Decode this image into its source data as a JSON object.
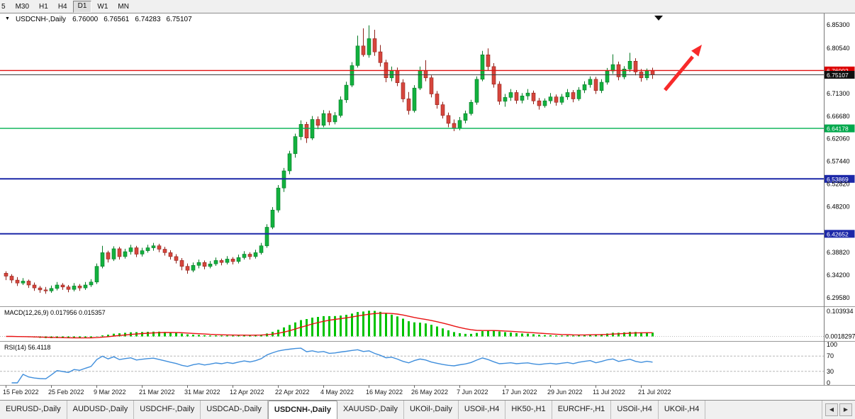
{
  "timeframe_toolbar": {
    "items": [
      "5",
      "M30",
      "H1",
      "H4",
      "D1",
      "W1",
      "MN"
    ],
    "active": "D1"
  },
  "chart_header": {
    "collapse_icon": "▼",
    "symbol_period": "USDCNH-,Daily",
    "open": "6.76000",
    "high": "6.76561",
    "low": "6.74283",
    "close": "6.75107"
  },
  "price_axis": {
    "labels": [
      "6.85300",
      "6.80540",
      "6.71300",
      "6.66680",
      "6.62060",
      "6.57440",
      "6.52820",
      "6.48200",
      "6.38820",
      "6.34200",
      "6.29580"
    ]
  },
  "hlines": [
    {
      "name": "resistance-line-red",
      "price": 6.76002,
      "label": "6.76002",
      "color": "#e21212",
      "width": 1.4,
      "badge_bg": "#dd0000"
    },
    {
      "name": "bid-price-line",
      "price": 6.75107,
      "label": "6.75107",
      "color": "#3c3c3c",
      "width": 1.0,
      "badge_bg": "#101010"
    },
    {
      "name": "support-line-green",
      "price": 6.64178,
      "label": "6.64178",
      "color": "#00b050",
      "width": 1.4,
      "badge_bg": "#00a84c"
    },
    {
      "name": "support-line-blue-upper",
      "price": 6.53869,
      "label": "6.53869",
      "color": "#1c28a8",
      "width": 2.0,
      "badge_bg": "#1c28a8"
    },
    {
      "name": "support-line-blue-lower",
      "price": 6.42652,
      "label": "6.42652",
      "color": "#1c28a8",
      "width": 2.0,
      "badge_bg": "#1c28a8"
    }
  ],
  "annotations": {
    "arrow_color": "#f82a2a"
  },
  "chart_data": {
    "type": "candlestick",
    "symbol": "USDCNH",
    "period": "Daily",
    "y_range": [
      6.28,
      6.872
    ],
    "up_color": "#12b13e",
    "up_border": "#077a26",
    "down_color": "#d6453c",
    "down_border": "#8f2019",
    "x_labels": [
      "15 Feb 2022",
      "25 Feb 2022",
      "9 Mar 2022",
      "21 Mar 2022",
      "31 Mar 2022",
      "12 Apr 2022",
      "22 Apr 2022",
      "4 May 2022",
      "16 May 2022",
      "26 May 2022",
      "7 Jun 2022",
      "17 Jun 2022",
      "29 Jun 2022",
      "11 Jul 2022",
      "21 Jul 2022"
    ],
    "x_label_indices": [
      0,
      8,
      16,
      24,
      32,
      40,
      48,
      56,
      64,
      72,
      80,
      88,
      96,
      104,
      112
    ],
    "candles": [
      [
        6.346,
        6.35,
        6.332,
        6.34
      ],
      [
        6.34,
        6.344,
        6.326,
        6.332
      ],
      [
        6.332,
        6.338,
        6.32,
        6.326
      ],
      [
        6.326,
        6.336,
        6.322,
        6.33
      ],
      [
        6.33,
        6.333,
        6.316,
        6.322
      ],
      [
        6.322,
        6.327,
        6.31,
        6.316
      ],
      [
        6.316,
        6.32,
        6.306,
        6.312
      ],
      [
        6.312,
        6.318,
        6.304,
        6.31
      ],
      [
        6.31,
        6.321,
        6.306,
        6.315
      ],
      [
        6.315,
        6.328,
        6.311,
        6.322
      ],
      [
        6.322,
        6.326,
        6.312,
        6.318
      ],
      [
        6.318,
        6.322,
        6.307,
        6.313
      ],
      [
        6.313,
        6.326,
        6.309,
        6.32
      ],
      [
        6.32,
        6.324,
        6.31,
        6.316
      ],
      [
        6.316,
        6.328,
        6.312,
        6.322
      ],
      [
        6.322,
        6.334,
        6.318,
        6.328
      ],
      [
        6.328,
        6.366,
        6.324,
        6.36
      ],
      [
        6.36,
        6.402,
        6.356,
        6.388
      ],
      [
        6.388,
        6.392,
        6.368,
        6.375
      ],
      [
        6.375,
        6.401,
        6.371,
        6.396
      ],
      [
        6.396,
        6.4,
        6.374,
        6.38
      ],
      [
        6.38,
        6.396,
        6.376,
        6.39
      ],
      [
        6.39,
        6.404,
        6.384,
        6.398
      ],
      [
        6.398,
        6.402,
        6.379,
        6.385
      ],
      [
        6.385,
        6.398,
        6.38,
        6.392
      ],
      [
        6.392,
        6.404,
        6.388,
        6.398
      ],
      [
        6.398,
        6.408,
        6.392,
        6.402
      ],
      [
        6.402,
        6.406,
        6.389,
        6.395
      ],
      [
        6.395,
        6.4,
        6.382,
        6.388
      ],
      [
        6.388,
        6.393,
        6.374,
        6.38
      ],
      [
        6.38,
        6.385,
        6.366,
        6.372
      ],
      [
        6.372,
        6.377,
        6.352,
        6.36
      ],
      [
        6.36,
        6.366,
        6.345,
        6.352
      ],
      [
        6.352,
        6.368,
        6.348,
        6.362
      ],
      [
        6.362,
        6.374,
        6.356,
        6.368
      ],
      [
        6.368,
        6.372,
        6.354,
        6.36
      ],
      [
        6.36,
        6.371,
        6.356,
        6.365
      ],
      [
        6.365,
        6.378,
        6.361,
        6.372
      ],
      [
        6.372,
        6.376,
        6.362,
        6.368
      ],
      [
        6.368,
        6.381,
        6.364,
        6.375
      ],
      [
        6.375,
        6.379,
        6.364,
        6.37
      ],
      [
        6.37,
        6.384,
        6.366,
        6.378
      ],
      [
        6.378,
        6.391,
        6.374,
        6.385
      ],
      [
        6.385,
        6.389,
        6.374,
        6.38
      ],
      [
        6.38,
        6.394,
        6.376,
        6.388
      ],
      [
        6.388,
        6.408,
        6.384,
        6.402
      ],
      [
        6.402,
        6.446,
        6.398,
        6.44
      ],
      [
        6.44,
        6.481,
        6.436,
        6.475
      ],
      [
        6.475,
        6.526,
        6.47,
        6.52
      ],
      [
        6.52,
        6.561,
        6.512,
        6.555
      ],
      [
        6.555,
        6.596,
        6.548,
        6.59
      ],
      [
        6.59,
        6.631,
        6.582,
        6.625
      ],
      [
        6.625,
        6.658,
        6.618,
        6.65
      ],
      [
        6.65,
        6.655,
        6.612,
        6.622
      ],
      [
        6.622,
        6.667,
        6.618,
        6.66
      ],
      [
        6.66,
        6.666,
        6.64,
        6.648
      ],
      [
        6.648,
        6.679,
        6.644,
        6.672
      ],
      [
        6.672,
        6.678,
        6.648,
        6.655
      ],
      [
        6.655,
        6.675,
        6.65,
        6.668
      ],
      [
        6.668,
        6.707,
        6.664,
        6.7
      ],
      [
        6.7,
        6.737,
        6.694,
        6.73
      ],
      [
        6.73,
        6.777,
        6.726,
        6.77
      ],
      [
        6.77,
        6.831,
        6.766,
        6.81
      ],
      [
        6.81,
        6.846,
        6.788,
        6.792
      ],
      [
        6.792,
        6.852,
        6.786,
        6.825
      ],
      [
        6.825,
        6.843,
        6.79,
        6.798
      ],
      [
        6.798,
        6.812,
        6.768,
        6.776
      ],
      [
        6.776,
        6.782,
        6.736,
        6.745
      ],
      [
        6.745,
        6.768,
        6.738,
        6.76
      ],
      [
        6.76,
        6.766,
        6.728,
        6.735
      ],
      [
        6.735,
        6.742,
        6.695,
        6.702
      ],
      [
        6.702,
        6.716,
        6.67,
        6.678
      ],
      [
        6.678,
        6.73,
        6.674,
        6.724
      ],
      [
        6.724,
        6.768,
        6.72,
        6.76
      ],
      [
        6.76,
        6.781,
        6.738,
        6.745
      ],
      [
        6.745,
        6.75,
        6.705,
        6.712
      ],
      [
        6.712,
        6.718,
        6.682,
        6.69
      ],
      [
        6.69,
        6.696,
        6.662,
        6.668
      ],
      [
        6.668,
        6.674,
        6.644,
        6.652
      ],
      [
        6.652,
        6.66,
        6.636,
        6.642
      ],
      [
        6.642,
        6.665,
        6.638,
        6.658
      ],
      [
        6.658,
        6.678,
        6.652,
        6.672
      ],
      [
        6.672,
        6.7,
        6.668,
        6.695
      ],
      [
        6.695,
        6.748,
        6.69,
        6.742
      ],
      [
        6.742,
        6.8,
        6.738,
        6.792
      ],
      [
        6.792,
        6.805,
        6.76,
        6.768
      ],
      [
        6.768,
        6.775,
        6.725,
        6.732
      ],
      [
        6.732,
        6.738,
        6.69,
        6.697
      ],
      [
        6.697,
        6.712,
        6.686,
        6.705
      ],
      [
        6.705,
        6.722,
        6.698,
        6.715
      ],
      [
        6.715,
        6.72,
        6.692,
        6.699
      ],
      [
        6.699,
        6.714,
        6.693,
        6.708
      ],
      [
        6.708,
        6.722,
        6.7,
        6.714
      ],
      [
        6.714,
        6.719,
        6.691,
        6.698
      ],
      [
        6.698,
        6.704,
        6.68,
        6.688
      ],
      [
        6.688,
        6.703,
        6.684,
        6.698
      ],
      [
        6.698,
        6.714,
        6.692,
        6.706
      ],
      [
        6.706,
        6.711,
        6.688,
        6.695
      ],
      [
        6.695,
        6.712,
        6.69,
        6.706
      ],
      [
        6.706,
        6.722,
        6.7,
        6.715
      ],
      [
        6.715,
        6.72,
        6.695,
        6.702
      ],
      [
        6.702,
        6.726,
        6.698,
        6.72
      ],
      [
        6.72,
        6.738,
        6.714,
        6.731
      ],
      [
        6.731,
        6.748,
        6.725,
        6.742
      ],
      [
        6.742,
        6.747,
        6.712,
        6.719
      ],
      [
        6.719,
        6.742,
        6.714,
        6.736
      ],
      [
        6.736,
        6.765,
        6.731,
        6.759
      ],
      [
        6.759,
        6.793,
        6.753,
        6.772
      ],
      [
        6.772,
        6.778,
        6.74,
        6.747
      ],
      [
        6.747,
        6.769,
        6.742,
        6.763
      ],
      [
        6.763,
        6.796,
        6.757,
        6.779
      ],
      [
        6.779,
        6.785,
        6.75,
        6.757
      ],
      [
        6.757,
        6.763,
        6.737,
        6.745
      ],
      [
        6.745,
        6.764,
        6.74,
        6.76
      ],
      [
        6.76,
        6.7656,
        6.7428,
        6.7511
      ]
    ]
  },
  "macd": {
    "label": "MACD(12,26,9)",
    "value_main": "0.017956",
    "value_signal": "0.015357",
    "axis_top": "0.103934",
    "axis_bottom": "0.0018297",
    "hist_color": "#00c300",
    "signal_color": "#e81212",
    "fast": 12,
    "slow": 26,
    "signal": 9
  },
  "rsi": {
    "label": "RSI(14)",
    "value": "56.4118",
    "period": 14,
    "levels": [
      70,
      30
    ],
    "axis_labels": [
      "100",
      "70",
      "30",
      "0"
    ],
    "line_color": "#3f8edc"
  },
  "tabs": {
    "items": [
      "EURUSD-,Daily",
      "AUDUSD-,Daily",
      "USDCHF-,Daily",
      "USDCAD-,Daily",
      "USDCNH-,Daily",
      "XAUUSD-,Daily",
      "UKOil-,Daily",
      "USOil-,H4",
      "HK50-,H1",
      "EURCHF-,H1",
      "USOil-,H4",
      "UKOil-,H4"
    ],
    "active_index": 4,
    "scroll_left": "◀",
    "scroll_right": "▶"
  }
}
